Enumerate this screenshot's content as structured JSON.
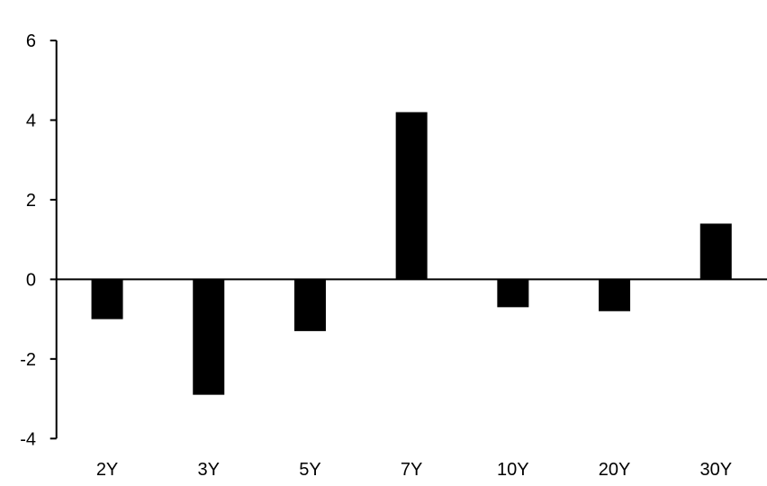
{
  "chart_data": {
    "type": "bar",
    "title": "",
    "xlabel": "",
    "ylabel": "",
    "categories": [
      "2Y",
      "3Y",
      "5Y",
      "7Y",
      "10Y",
      "20Y",
      "30Y"
    ],
    "values": [
      -1.0,
      -2.9,
      -1.3,
      4.2,
      -0.7,
      -0.8,
      1.4
    ],
    "ylim": [
      -4,
      6
    ],
    "yticks": [
      "-4",
      "-2",
      "0",
      "2",
      "4",
      "6"
    ],
    "grid": false,
    "bar_color": "#000000"
  }
}
